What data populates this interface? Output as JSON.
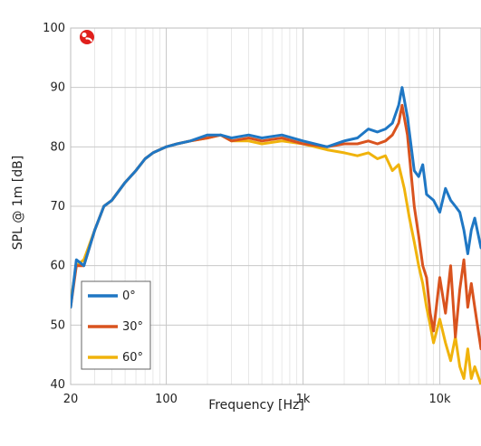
{
  "colors": {
    "series_0": "#1f77c4",
    "series_30": "#d9531e",
    "series_60": "#f0b30c",
    "grid_major": "#c8c8c8",
    "grid_minor": "#e3e3e3",
    "logo": "#e0201c"
  },
  "logo_icon": "brand-logo-icon",
  "chart_data": {
    "type": "line",
    "xscale": "log",
    "xlim": [
      20,
      20000
    ],
    "ylim": [
      40,
      100
    ],
    "xlabel": "Frequency [Hz]",
    "ylabel": "SPL @ 1m [dB]",
    "xticks": [
      {
        "value": 20,
        "label": "20"
      },
      {
        "value": 100,
        "label": "100"
      },
      {
        "value": 1000,
        "label": "1k"
      },
      {
        "value": 10000,
        "label": "10k"
      }
    ],
    "yticks": [
      40,
      50,
      60,
      70,
      80,
      90,
      100
    ],
    "grid": true,
    "legend_position": "bottom-left",
    "series": [
      {
        "name": "0°",
        "color": "#1f77c4",
        "x": [
          20,
          22,
          25,
          30,
          35,
          40,
          50,
          60,
          70,
          80,
          100,
          120,
          150,
          200,
          250,
          300,
          400,
          500,
          700,
          1000,
          1500,
          2000,
          2500,
          3000,
          3500,
          4000,
          4500,
          5000,
          5300,
          5800,
          6500,
          7000,
          7500,
          8000,
          9000,
          10000,
          11000,
          12000,
          13000,
          14000,
          15000,
          16000,
          17000,
          18000,
          20000
        ],
        "y": [
          53,
          61,
          60,
          66,
          70,
          71,
          74,
          76,
          78,
          79,
          80,
          80.5,
          81,
          82,
          82,
          81.5,
          82,
          81.5,
          82,
          81,
          80,
          81,
          81.5,
          83,
          82.5,
          83,
          84,
          87,
          90,
          85,
          76,
          75,
          77,
          72,
          71,
          69,
          73,
          71,
          70,
          69,
          66,
          62,
          66,
          68,
          63
        ]
      },
      {
        "name": "30°",
        "color": "#d9531e",
        "x": [
          20,
          22,
          25,
          30,
          35,
          40,
          50,
          60,
          70,
          80,
          100,
          120,
          150,
          200,
          250,
          300,
          400,
          500,
          700,
          1000,
          1500,
          2000,
          2500,
          3000,
          3500,
          4000,
          4500,
          5000,
          5300,
          5800,
          6500,
          7000,
          7500,
          8000,
          8500,
          9000,
          10000,
          11000,
          12000,
          13000,
          14000,
          15000,
          16000,
          17000,
          18000,
          20000
        ],
        "y": [
          53,
          60,
          60,
          66,
          70,
          71,
          74,
          76,
          78,
          79,
          80,
          80.5,
          81,
          81.5,
          82,
          81,
          81.5,
          81,
          81.5,
          80.5,
          80,
          80.5,
          80.5,
          81,
          80.5,
          81,
          82,
          84,
          87,
          82,
          70,
          65,
          60,
          58,
          52,
          49,
          58,
          52,
          60,
          48,
          56,
          61,
          53,
          57,
          53,
          46
        ]
      },
      {
        "name": "60°",
        "color": "#f0b30c",
        "x": [
          20,
          22,
          25,
          30,
          35,
          40,
          50,
          60,
          70,
          80,
          100,
          120,
          150,
          200,
          250,
          300,
          400,
          500,
          700,
          1000,
          1500,
          2000,
          2500,
          3000,
          3500,
          4000,
          4500,
          5000,
          5500,
          6000,
          6500,
          7000,
          7500,
          8000,
          8500,
          9000,
          10000,
          11000,
          12000,
          13000,
          14000,
          15000,
          16000,
          17000,
          18000,
          20000
        ],
        "y": [
          54,
          60,
          61,
          66,
          70,
          71,
          74,
          76,
          78,
          79,
          80,
          80.5,
          81,
          81.5,
          82,
          81,
          81,
          80.5,
          81,
          80.5,
          79.5,
          79,
          78.5,
          79,
          78,
          78.5,
          76,
          77,
          73,
          68,
          64,
          60,
          57,
          53,
          50,
          47,
          51,
          47,
          44,
          48,
          43,
          41,
          46,
          41,
          43,
          40
        ]
      }
    ]
  }
}
